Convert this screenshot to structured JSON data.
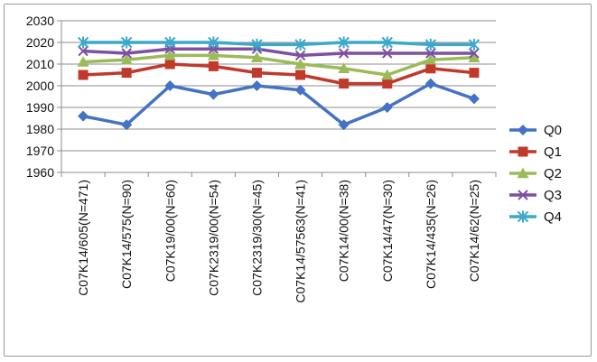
{
  "chart_data": {
    "type": "line",
    "title": "",
    "xlabel": "",
    "ylabel": "",
    "ylim": [
      1960,
      2030
    ],
    "y_ticks": [
      1960,
      1970,
      1980,
      1990,
      2000,
      2010,
      2020,
      2030
    ],
    "grid": "horizontal",
    "legend_position": "right",
    "categories": [
      "C07K14/605(N=471)",
      "C07K14/575(N=90)",
      "C07K19/00(N=60)",
      "C07K2319/00(N=54)",
      "C07K2319/30(N=45)",
      "C07K14/57563(N=41)",
      "C07K14/00(N=38)",
      "C07K14/47(N=30)",
      "C07K14/435(N=26)",
      "C07K14/62(N=25)"
    ],
    "series": [
      {
        "name": "Q0",
        "color": "#4472C4",
        "marker": "diamond",
        "values": [
          1986,
          1982,
          2000,
          1996,
          2000,
          1998,
          1982,
          1990,
          2001,
          1994
        ]
      },
      {
        "name": "Q1",
        "color": "#C0392B",
        "marker": "square",
        "values": [
          2005,
          2006,
          2010,
          2009,
          2006,
          2005,
          2001,
          2001,
          2008,
          2006
        ]
      },
      {
        "name": "Q2",
        "color": "#9BBB59",
        "marker": "triangle",
        "values": [
          2011,
          2012,
          2014,
          2014,
          2013,
          2010,
          2008,
          2005,
          2012,
          2013
        ]
      },
      {
        "name": "Q3",
        "color": "#7E4FA2",
        "marker": "x",
        "values": [
          2016,
          2015,
          2017,
          2017,
          2017,
          2014,
          2015,
          2015,
          2015,
          2015
        ]
      },
      {
        "name": "Q4",
        "color": "#3BA9C9",
        "marker": "star",
        "values": [
          2020,
          2020,
          2020,
          2020,
          2019,
          2019,
          2020,
          2020,
          2019,
          2019
        ]
      }
    ]
  }
}
